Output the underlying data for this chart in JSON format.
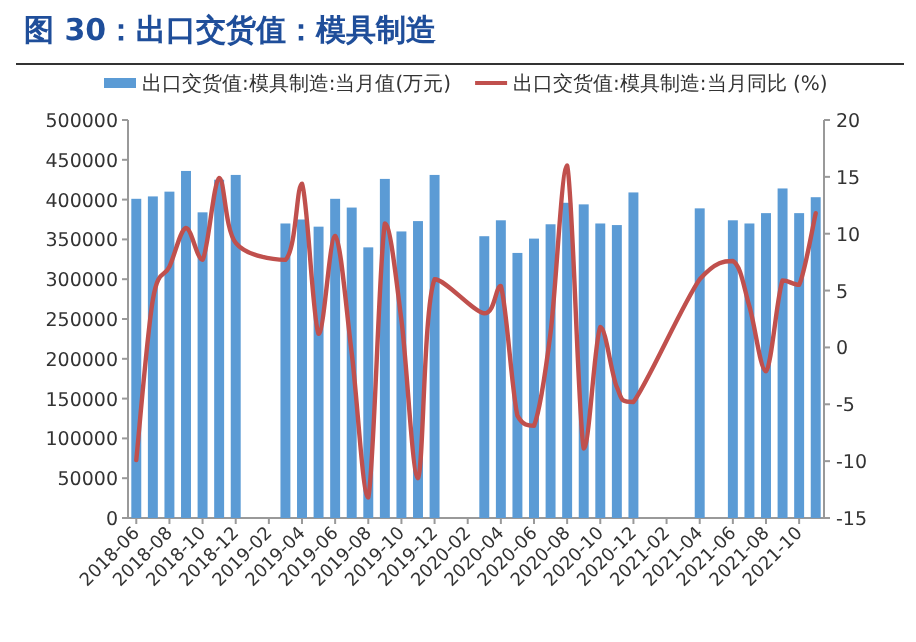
{
  "chart_data": {
    "type": "bar",
    "title": "图 30：出口交货值：模具制造",
    "categories": [
      "2018-06",
      null,
      "2018-08",
      null,
      "2018-10",
      null,
      "2018-12",
      null,
      "2019-02",
      null,
      "2019-04",
      null,
      "2019-06",
      null,
      "2019-08",
      null,
      "2019-10",
      null,
      "2019-12",
      null,
      "2020-02",
      null,
      "2020-04",
      null,
      "2020-06",
      null,
      "2020-08",
      null,
      "2020-10",
      null,
      "2020-12",
      null,
      "2021-02",
      null,
      "2021-04",
      null,
      "2021-06",
      null,
      "2021-08",
      null,
      "2021-10",
      null
    ],
    "series": [
      {
        "name": "出口交货值:模具制造:当月值(万元)",
        "color": "#5b9bd5",
        "values": [
          401000,
          404000,
          410000,
          436000,
          384000,
          425000,
          431000,
          null,
          null,
          370000,
          375000,
          366000,
          401000,
          390000,
          340000,
          426000,
          360000,
          373000,
          431000,
          null,
          null,
          354000,
          374000,
          333000,
          351000,
          369000,
          396000,
          394000,
          370000,
          368000,
          409000,
          null,
          null,
          null,
          389000,
          null,
          374000,
          370000,
          383000,
          414000,
          383000,
          403000
        ]
      },
      {
        "name": "出口交货值:模具制造:当月同比 (%)",
        "type": "line",
        "axis": "y2",
        "color": "#c0504d",
        "values": [
          -9.9,
          4.2,
          7.1,
          10.5,
          7.7,
          14.9,
          9.2,
          null,
          null,
          7.7,
          14.4,
          1.2,
          9.8,
          -0.5,
          -13.2,
          10.9,
          2.4,
          -11.5,
          6.0,
          null,
          null,
          3.0,
          5.4,
          -6.0,
          -6.9,
          1.3,
          16.0,
          -8.9,
          1.8,
          -3.5,
          -4.8,
          null,
          null,
          null,
          6.0,
          null,
          7.6,
          3.6,
          -2.1,
          5.9,
          5.5,
          11.8
        ]
      }
    ],
    "ylim": [
      0,
      500000
    ],
    "yticks": [
      0,
      50000,
      100000,
      150000,
      200000,
      250000,
      300000,
      350000,
      400000,
      450000,
      500000
    ],
    "y2lim": [
      -15,
      20
    ],
    "y2ticks": [
      -15,
      -10,
      -5,
      0,
      5,
      10,
      15,
      20
    ],
    "legend": "top"
  }
}
